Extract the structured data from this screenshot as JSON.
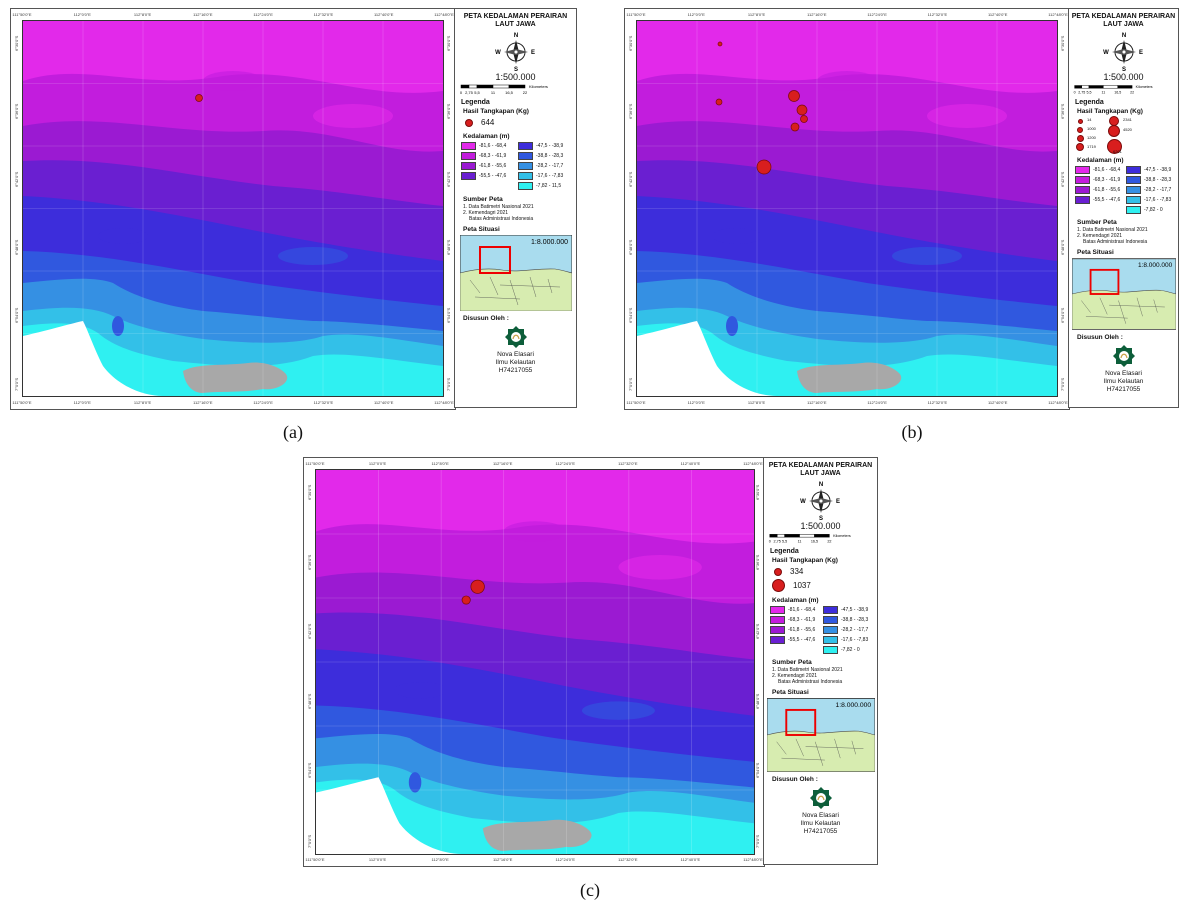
{
  "captions": [
    "(a)",
    "(b)",
    "(c)"
  ],
  "map": {
    "title": "PETA KEDALAMAN PERAIRAN LAUT JAWA",
    "compass": {
      "n": "N",
      "s": "S",
      "e": "E",
      "w": "W"
    },
    "scale_text": "1:500.000",
    "scalebar_labels": [
      "0",
      "2,75",
      "5,5",
      "11",
      "16,5",
      "22"
    ],
    "scalebar_unit": "Kilometers",
    "legend_label": "Legenda",
    "catch_label": "Hasil Tangkapan (Kg)",
    "depth_label": "Kedalaman (m)",
    "source_title": "Sumber Peta",
    "sources": [
      "1. Data Batimetri Nasional 2021",
      "2. Kemendagri 2021",
      "Batas Administrasi Indonesia"
    ],
    "situation_title": "Peta Situasi",
    "situation_scale": "1:8.000.000",
    "compiled_label": "Disusun Oleh :",
    "author": [
      "Nova Elasari",
      "Ilmu Kelautan",
      "H74217055"
    ],
    "longitude_ticks": [
      "111°50'0\"E",
      "112°0'0\"E",
      "112°8'0\"E",
      "112°16'0\"E",
      "112°24'0\"E",
      "112°32'0\"E",
      "112°40'0\"E",
      "112°48'0\"E"
    ],
    "latitude_ticks": [
      "6°30'0\"S",
      "6°36'0\"S",
      "6°42'0\"S",
      "6°48'0\"S",
      "6°54'0\"S",
      "7°0'0\"S"
    ],
    "colors": {
      "d1": "#e229ea",
      "d2": "#c21ddd",
      "d3": "#9b1ad2",
      "d4": "#6a1fd1",
      "d5": "#3d2ddb",
      "d6": "#3058df",
      "d7": "#3590e3",
      "d8": "#33c0e8",
      "d9": "#2ff0f1",
      "land": "#ffffff",
      "island": "#a8a8a8",
      "catch": "#d81e1e"
    }
  },
  "panels": [
    {
      "depth_classes": [
        "-81,6 - -68,4",
        "-68,3 - -61,9",
        "-61,8 - -55,6",
        "-55,5 - -47,6",
        "-47,5 - -38,9",
        "-38,8 - -28,3",
        "-28,2 - -17,7",
        "-17,6 - -7,83",
        "-7,82 - 11,5"
      ],
      "catch_classes": [
        "644"
      ],
      "catch_points_kg": [
        644
      ]
    },
    {
      "depth_classes": [
        "-81,6 - -68,4",
        "-68,3 - -61,9",
        "-61,8 - -55,6",
        "-55,5 - -47,6",
        "-47,5 - -38,9",
        "-38,8 - -28,3",
        "-28,2 - -17,7",
        "-17,6 - -7,83",
        "-7,82 - 0"
      ],
      "catch_classes": [
        "14",
        "2341",
        "1000",
        "4520",
        "1200",
        "1719",
        "6201"
      ],
      "catch_points_kg": [
        14,
        1000,
        1200,
        1719,
        2341,
        4520,
        6201
      ]
    },
    {
      "depth_classes": [
        "-81,6 - -68,4",
        "-68,3 - -61,9",
        "-61,8 - -55,6",
        "-55,5 - -47,6",
        "-47,5 - -38,9",
        "-38,8 - -28,3",
        "-28,2 - -17,7",
        "-17,6 - -7,83",
        "-7,82 - 0"
      ],
      "catch_classes": [
        "334",
        "1037"
      ],
      "catch_points_kg": [
        334,
        1037
      ]
    }
  ]
}
